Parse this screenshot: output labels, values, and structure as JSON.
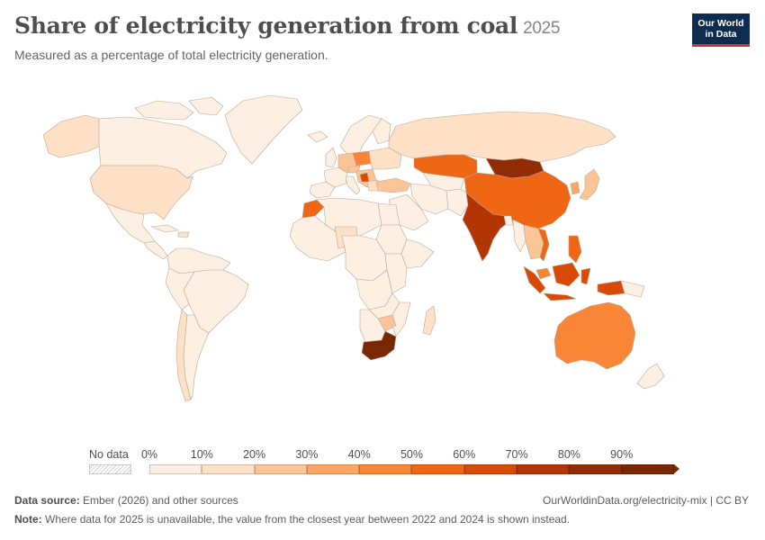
{
  "header": {
    "title": "Share of electricity generation from coal",
    "year": "2025",
    "subtitle": "Measured as a percentage of total electricity generation."
  },
  "logo": {
    "line1": "Our World",
    "line2": "in Data"
  },
  "legend": {
    "no_data_label": "No data",
    "ticks": [
      "0%",
      "10%",
      "20%",
      "30%",
      "40%",
      "50%",
      "60%",
      "70%",
      "80%",
      "90%"
    ],
    "colors": [
      "#fdf0e2",
      "#fde0c6",
      "#fdc596",
      "#fda564",
      "#f98637",
      "#ef6615",
      "#d84a05",
      "#b33503",
      "#922c04",
      "#7a2703"
    ]
  },
  "map_colors": {
    "ocean": "#ffffff",
    "land_border": "#b9a897",
    "no_data": "#e9e9e9"
  },
  "footer": {
    "source_label": "Data source:",
    "source_text": "Ember (2026) and other sources",
    "url": "OurWorldinData.org/electricity-mix | CC BY",
    "note_label": "Note:",
    "note_text": "Where data for 2025 is unavailable, the value from the closest year between 2022 and 2024 is shown instead."
  }
}
